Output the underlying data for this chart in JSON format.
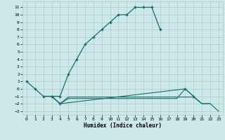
{
  "title": "",
  "xlabel": "Humidex (Indice chaleur)",
  "bg_color": "#cce8e8",
  "grid_color": "#aacccc",
  "line_color": "#1a6b6b",
  "xlim": [
    -0.5,
    23.5
  ],
  "ylim": [
    -3.5,
    11.8
  ],
  "xticks": [
    0,
    1,
    2,
    3,
    4,
    5,
    6,
    7,
    8,
    9,
    10,
    11,
    12,
    13,
    14,
    15,
    16,
    17,
    18,
    19,
    20,
    21,
    22,
    23
  ],
  "yticks": [
    -3,
    -2,
    -1,
    0,
    1,
    2,
    3,
    4,
    5,
    6,
    7,
    8,
    9,
    10,
    11
  ],
  "series0_x": [
    0,
    1,
    2,
    3,
    4,
    5,
    6,
    7,
    8,
    9,
    10,
    11,
    12,
    13,
    14,
    15,
    16
  ],
  "series0_y": [
    1,
    0,
    -1,
    -1,
    -1,
    2,
    4,
    6,
    7,
    8,
    9,
    10,
    10,
    11,
    11,
    11,
    8
  ],
  "series1_x": [
    2,
    3,
    4,
    5,
    6,
    7,
    8,
    9,
    10,
    11,
    12,
    13,
    14,
    15,
    16,
    17,
    18,
    19,
    20,
    21,
    22,
    23
  ],
  "series1_y": [
    -1,
    -1,
    -2,
    -1.1,
    -1.1,
    -1.1,
    -1.1,
    -1.1,
    -1.1,
    -1.1,
    -1.1,
    -1.1,
    -1.1,
    -1.1,
    -1.1,
    -1.1,
    -1.1,
    -1.1,
    -1.1,
    -2,
    -2,
    -3
  ],
  "series2_x": [
    2,
    3,
    4,
    5,
    6,
    7,
    8,
    9,
    10,
    11,
    12,
    13,
    14,
    15,
    16,
    17,
    18,
    19,
    20,
    21,
    22
  ],
  "series2_y": [
    -1,
    -1,
    -2,
    -1.3,
    -1.3,
    -1.3,
    -1.3,
    -1.3,
    -1.3,
    -1.3,
    -1.3,
    -1.3,
    -1.3,
    -1.3,
    -1.3,
    -1.3,
    -1.3,
    0,
    -1,
    -2,
    -2
  ],
  "series3_x": [
    3,
    4,
    19,
    20
  ],
  "series3_y": [
    -1,
    -2,
    0,
    -1
  ]
}
